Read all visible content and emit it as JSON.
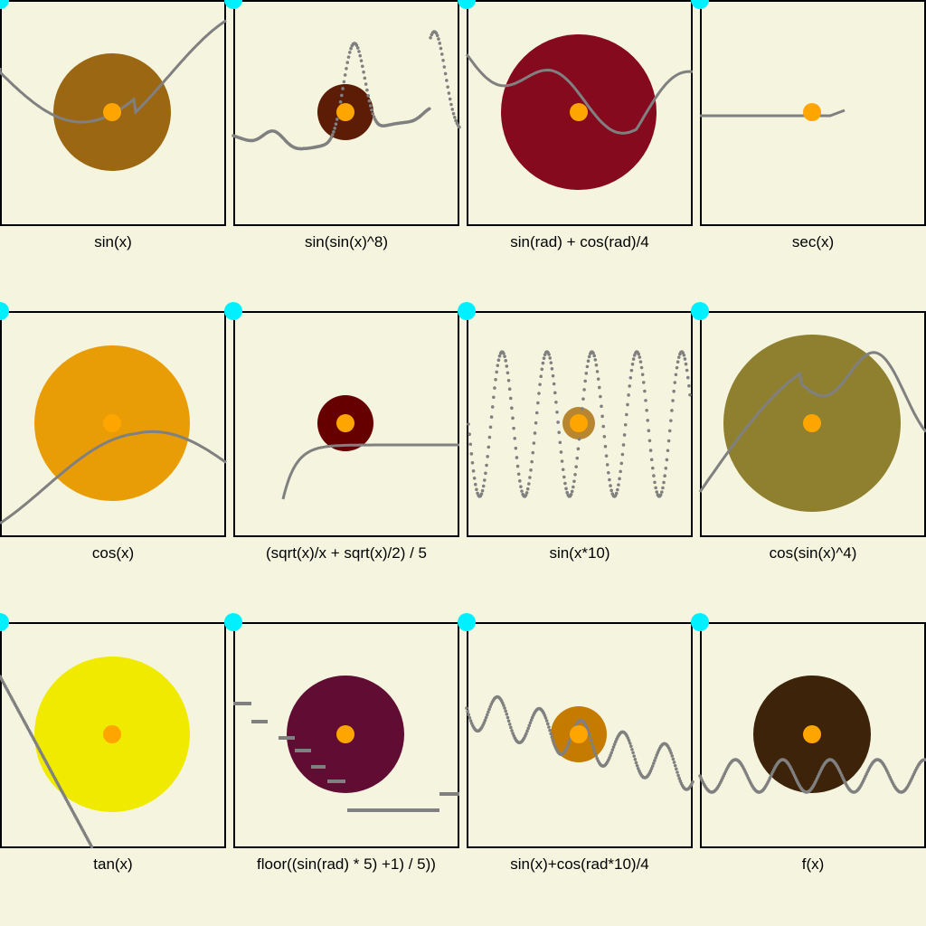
{
  "cells": [
    {
      "label": "sin(x)",
      "disc_color": "#9b6713",
      "disc_size": "large",
      "curve": "sin"
    },
    {
      "label": "sin(sin(x)^8)",
      "disc_color": "#5c1c05",
      "disc_size": "small",
      "curve": "sinsin8"
    },
    {
      "label": "sin(rad) + cos(rad)/4",
      "disc_color": "#850a1e",
      "disc_size": "xlarge",
      "curve": "sinrad"
    },
    {
      "label": "sec(x)",
      "disc_color": "",
      "disc_size": "none",
      "curve": "sec"
    },
    {
      "label": "cos(x)",
      "disc_color": "#e89c05",
      "disc_size": "xlarge",
      "curve": "cos"
    },
    {
      "label": "(sqrt(x)/x + sqrt(x)/2) / 5",
      "disc_color": "#660000",
      "disc_size": "small",
      "curve": "sqrt"
    },
    {
      "label": "sin(x*10)",
      "disc_color": "#b8862e",
      "disc_size": "tiny",
      "curve": "sin10"
    },
    {
      "label": "cos(sin(x)^4)",
      "disc_color": "#8f8030",
      "disc_size": "xxlarge",
      "curve": "cossin4"
    },
    {
      "label": "tan(x)",
      "disc_color": "#f0ea00",
      "disc_size": "xlarge",
      "curve": "tan"
    },
    {
      "label": "floor((sin(rad) * 5) +1) / 5))",
      "disc_color": "#610d33",
      "disc_size": "large",
      "curve": "floor"
    },
    {
      "label": "sin(x)+cos(rad*10)/4",
      "disc_color": "#c47b00",
      "disc_size": "small",
      "curve": "sincos10"
    },
    {
      "label": "f(x)",
      "disc_color": "#3d230a",
      "disc_size": "large",
      "curve": "fx"
    }
  ],
  "colors": {
    "background": "#f5f5df",
    "center_dot": "#ffa500",
    "curve": "#808080",
    "handle": "#00f0ff"
  }
}
